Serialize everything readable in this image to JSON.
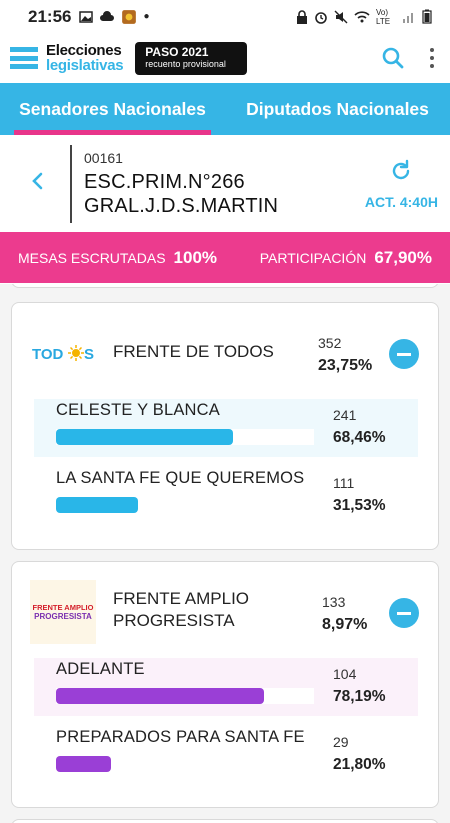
{
  "statusbar": {
    "time": "21:56",
    "network": "Vo) LTE",
    "colors": {
      "text": "#222222"
    }
  },
  "app": {
    "brand_line1": "Elecciones",
    "brand_line2": "legislativas",
    "badge_line1": "PASO 2021",
    "badge_line2": "recuento provisional",
    "search_icon": "search-icon",
    "menu_icon": "more-vert-icon",
    "colors": {
      "accent": "#36b5e5",
      "pink": "#ec3b8e",
      "dark": "#111111"
    }
  },
  "tabs": [
    {
      "label": "Senadores Nacionales",
      "active": true
    },
    {
      "label": "Diputados Nacionales",
      "active": false
    }
  ],
  "location": {
    "code": "00161",
    "name_line1": "ESC.PRIM.N°266",
    "name_line2": "GRAL.J.D.S.MARTIN",
    "refresh_label": "ACT. 4:40H"
  },
  "banner": {
    "mesas_label": "MESAS ESCRUTADAS",
    "mesas_value": "100%",
    "part_label": "PARTICIPACIÓN",
    "part_value": "67,90%"
  },
  "parties": [
    {
      "name_line1": "FRENTE DE TODOS",
      "name_line2": "",
      "logo_text": "TODOS",
      "votes": "352",
      "pct": "23,75%",
      "lists": [
        {
          "name": "CELESTE Y BLANCA",
          "votes": "241",
          "pct": "68,46%",
          "fill": 0.6846,
          "color": "#29b6e8"
        },
        {
          "name": "LA SANTA FE QUE QUEREMOS",
          "votes": "111",
          "pct": "31,53%",
          "fill": 0.3153,
          "color": "#29b6e8"
        }
      ]
    },
    {
      "name_line1": "FRENTE AMPLIO",
      "name_line2": "PROGRESISTA",
      "logo_text_line1": "FRENTE AMPLIO",
      "logo_text_line2": "PROGRESISTA",
      "votes": "133",
      "pct": "8,97%",
      "lists": [
        {
          "name": "ADELANTE",
          "votes": "104",
          "pct": "78,19%",
          "fill": 0.7819,
          "color": "#9a3fd6"
        },
        {
          "name": "PREPARADOS PARA SANTA FE",
          "votes": "29",
          "pct": "21,80%",
          "fill": 0.218,
          "color": "#9a3fd6"
        }
      ]
    }
  ]
}
